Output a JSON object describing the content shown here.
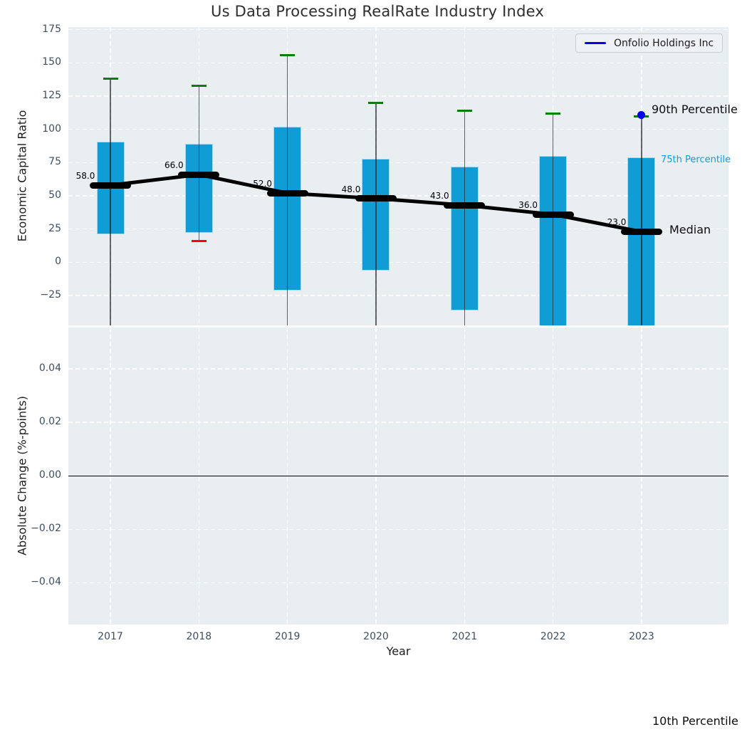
{
  "chart_data": {
    "type": "boxplot",
    "title": "Us Data Processing RealRate Industry Index",
    "xlabel": "Year",
    "categories": [
      "2017",
      "2018",
      "2019",
      "2020",
      "2021",
      "2022",
      "2023"
    ],
    "legend": {
      "label": "Onfolio Holdings Inc",
      "position": "upper right",
      "color": "#0000ee"
    },
    "panels": [
      {
        "ylabel": "Economic Capital Ratio",
        "ylim": [
          -47.5,
          177
        ],
        "yticks": [
          175,
          150,
          125,
          100,
          75,
          50,
          25,
          0,
          -25
        ],
        "ytick_labels": [
          "175",
          "150",
          "125",
          "100",
          "75",
          "50",
          "25",
          "0",
          "−25"
        ],
        "grid": true,
        "series": {
          "percentile_90": [
            138,
            133,
            156,
            120,
            114,
            112,
            110
          ],
          "percentile_75": [
            91,
            89,
            102,
            78,
            72,
            80,
            79
          ],
          "median": [
            58,
            66,
            52,
            48,
            43,
            36,
            23
          ],
          "percentile_25": [
            21,
            22,
            -21,
            -6,
            -36,
            null,
            null
          ],
          "percentile_10": [
            null,
            16,
            null,
            null,
            null,
            null,
            null
          ]
        },
        "median_labels": [
          "58.0",
          "66.0",
          "52.0",
          "48.0",
          "43.0",
          "36.0",
          "23.0"
        ],
        "company_point": {
          "name": "Onfolio Holdings Inc",
          "category": "2023",
          "value": 111
        },
        "annotations": {
          "p90": "90th Percentile",
          "p75": "75th Percentile",
          "median": "Median",
          "p10": "10th Percentile"
        }
      },
      {
        "ylabel": "Absolute Change (%-points)",
        "ylim": [
          -0.0556,
          0.0555
        ],
        "yticks": [
          0.04,
          0.02,
          0.0,
          -0.02,
          -0.04
        ],
        "ytick_labels": [
          "0.04",
          "0.02",
          "0.00",
          "−0.02",
          "−0.04"
        ],
        "grid": true,
        "zero_line": 0.0,
        "series": []
      }
    ],
    "colors": {
      "box_fill": "#109cd4",
      "box_edge": "#a9d9ee",
      "whisker": "rgba(35,35,35,0.7)",
      "cap_top": "#008000",
      "cap_bottom": "#ff0000",
      "median": "#000000",
      "company": "#0000ee",
      "panel_bg": "#e9eef1",
      "grid": "#ffffff",
      "tick_label": "#3e4e5e",
      "annotation_75": "#1a9bd7"
    }
  }
}
